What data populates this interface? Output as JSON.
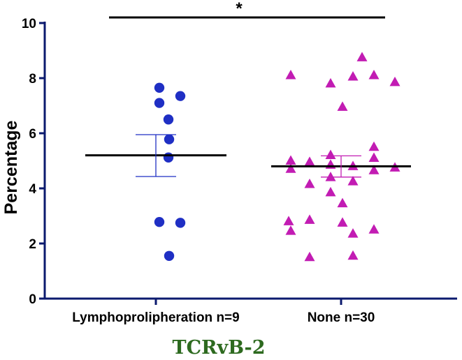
{
  "chart_data": {
    "type": "scatter",
    "ylabel": "Percentage",
    "ylim": [
      0,
      10
    ],
    "yticks": [
      "0",
      "2",
      "4",
      "6",
      "8",
      "10"
    ],
    "categories": [
      "Lymphoprolipheration n=9",
      "None n=30"
    ],
    "caption": "TCRvB-2",
    "significance": "*",
    "series": [
      {
        "category": "Lymphoprolipheration n=9",
        "marker": "circle",
        "color": "#1f2fc4",
        "mean": 5.2,
        "sem_low": 4.43,
        "sem_high": 5.95,
        "values": [
          7.65,
          7.35,
          7.1,
          6.5,
          5.78,
          5.12,
          2.78,
          2.75,
          1.55
        ]
      },
      {
        "category": "None n=30",
        "marker": "triangle",
        "color": "#c21cb3",
        "mean": 4.8,
        "sem_low": 4.41,
        "sem_high": 5.18,
        "values": [
          8.75,
          8.1,
          8.05,
          8.1,
          7.8,
          7.85,
          6.95,
          5.5,
          5.2,
          5.1,
          5.0,
          4.95,
          4.85,
          4.8,
          4.7,
          4.75,
          4.65,
          4.4,
          4.25,
          4.15,
          3.85,
          3.45,
          2.85,
          2.8,
          2.75,
          2.5,
          2.45,
          2.35,
          1.55,
          1.5
        ]
      }
    ],
    "grid": false,
    "legend": "none",
    "axis_color": "#0b1a6e"
  }
}
